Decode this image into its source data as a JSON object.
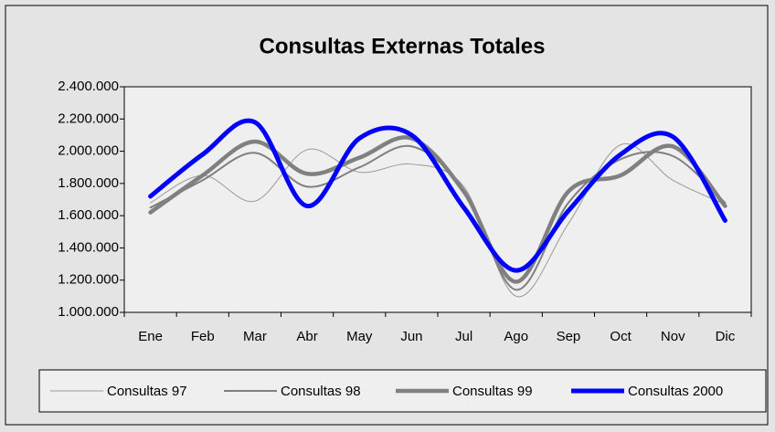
{
  "chart_data": {
    "type": "line",
    "title": "Consultas Externas Totales",
    "categories": [
      "Ene",
      "Feb",
      "Mar",
      "Abr",
      "May",
      "Jun",
      "Jul",
      "Ago",
      "Sep",
      "Oct",
      "Nov",
      "Dic"
    ],
    "series": [
      {
        "name": "Consultas 97",
        "color": "#9a9a9a",
        "line_width": 1,
        "values": [
          1680000,
          1850000,
          1690000,
          2010000,
          1870000,
          1920000,
          1780000,
          1100000,
          1550000,
          2040000,
          1820000,
          1670000
        ]
      },
      {
        "name": "Consultas 98",
        "color": "#7f7f7f",
        "line_width": 2,
        "values": [
          1650000,
          1820000,
          1990000,
          1780000,
          1900000,
          2030000,
          1760000,
          1140000,
          1680000,
          1950000,
          1970000,
          1680000
        ]
      },
      {
        "name": "Consultas 99",
        "color": "#808080",
        "line_width": 4.5,
        "values": [
          1620000,
          1850000,
          2060000,
          1860000,
          1960000,
          2080000,
          1750000,
          1190000,
          1750000,
          1850000,
          2030000,
          1660000
        ]
      },
      {
        "name": "Consultas 2000",
        "color": "#0000ff",
        "line_width": 5,
        "values": [
          1720000,
          1980000,
          2180000,
          1660000,
          2080000,
          2100000,
          1650000,
          1260000,
          1630000,
          1980000,
          2090000,
          1570000
        ]
      }
    ],
    "ylim": [
      1000000,
      2400000
    ],
    "yticks": [
      {
        "value": 1000000,
        "label": "1.000.000"
      },
      {
        "value": 1200000,
        "label": "1.200.000"
      },
      {
        "value": 1400000,
        "label": "1.400.000"
      },
      {
        "value": 1600000,
        "label": "1.600.000"
      },
      {
        "value": 1800000,
        "label": "1.800.000"
      },
      {
        "value": 2000000,
        "label": "2.000.000"
      },
      {
        "value": 2200000,
        "label": "2.200.000"
      },
      {
        "value": 2400000,
        "label": "2.400.000"
      }
    ],
    "smooth": true,
    "legend": "bottom"
  }
}
